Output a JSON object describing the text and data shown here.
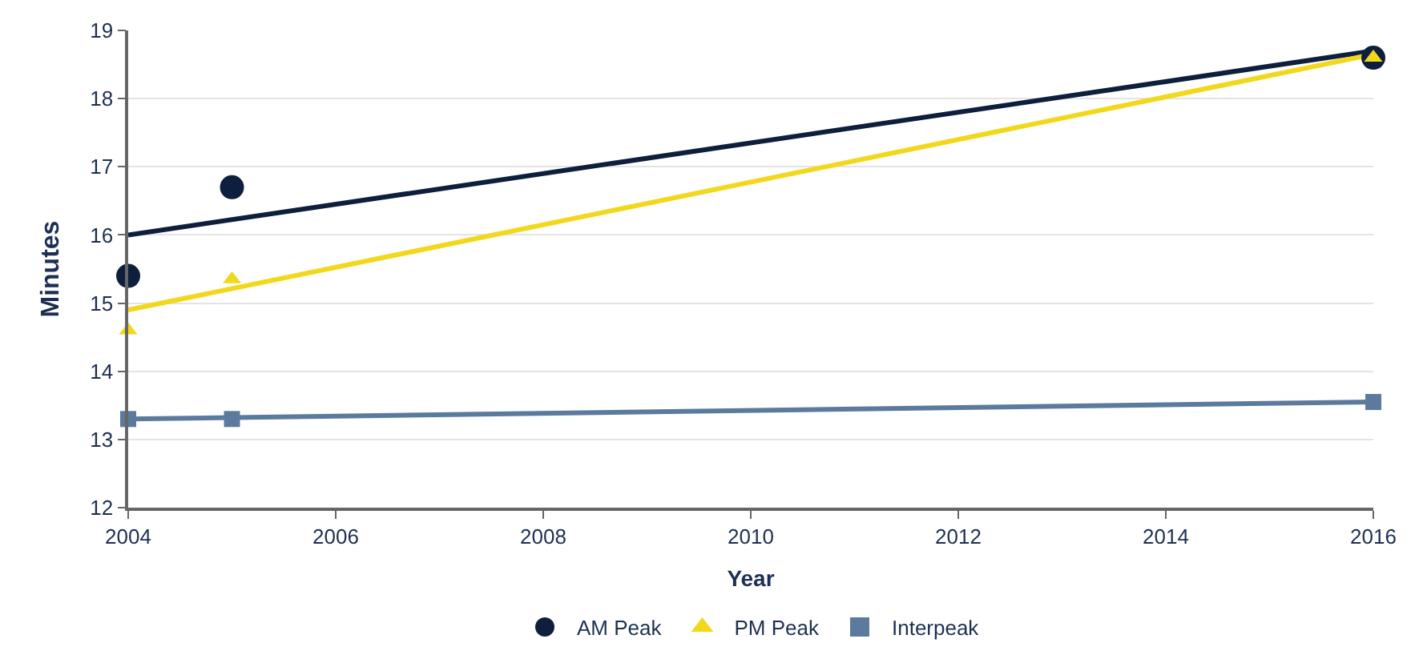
{
  "chart_data": {
    "type": "scatter",
    "xlabel": "Year",
    "ylabel": "Minutes",
    "xlim": [
      2004,
      2016
    ],
    "xticks": [
      2004,
      2006,
      2008,
      2010,
      2012,
      2014,
      2016
    ],
    "ylim": [
      12,
      19
    ],
    "yticks": [
      12,
      13,
      14,
      15,
      16,
      17,
      18,
      19
    ],
    "grid": "y",
    "legend": "bottom",
    "series": [
      {
        "name": "AM Peak",
        "color": "#0d1f3c",
        "marker": "circle",
        "x": [
          2004,
          2005,
          2016
        ],
        "values": [
          15.4,
          16.7,
          18.6
        ]
      },
      {
        "name": "PM Peak",
        "color": "#f2d81c",
        "marker": "triangle",
        "x": [
          2004,
          2005,
          2016
        ],
        "values": [
          14.6,
          15.35,
          18.6
        ]
      },
      {
        "name": "Interpeak",
        "color": "#5b7a9e",
        "marker": "square",
        "x": [
          2004,
          2005,
          2016
        ],
        "values": [
          13.3,
          13.3,
          13.55
        ]
      },
      {
        "type": "line",
        "color": "#0d1f3c",
        "x": [
          2004,
          2016
        ],
        "values": [
          16.0,
          18.7
        ]
      },
      {
        "type": "line",
        "color": "#f2d81c",
        "x": [
          2004,
          2016
        ],
        "values": [
          14.9,
          18.65
        ]
      },
      {
        "type": "line",
        "color": "#5b7a9e",
        "x": [
          2004,
          2016
        ],
        "values": [
          13.3,
          13.55
        ]
      }
    ]
  }
}
